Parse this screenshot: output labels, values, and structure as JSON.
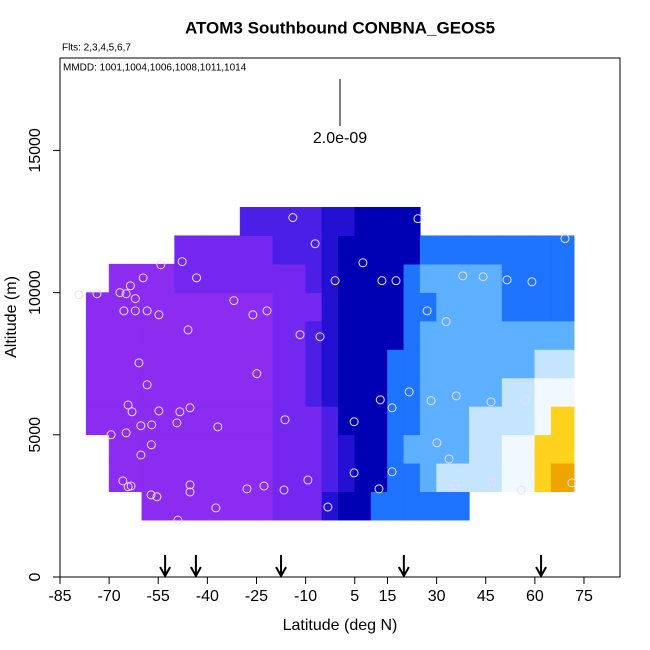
{
  "chart_data": {
    "type": "heatmap",
    "title": "ATOM3 Southbound CONBNA_GEOS5",
    "subtitle": "Flts: 2,3,4,5,6,7",
    "annotation": "MMDD: 1001,1004,1006,1008,1011,1014",
    "scale_label": "2.0e-09",
    "xlabel": "Latitude (deg N)",
    "ylabel": "Altitude (m)",
    "xlim": [
      -85,
      86
    ],
    "ylim": [
      0,
      18250
    ],
    "xticks": [
      -85,
      -70,
      -55,
      -40,
      -25,
      -10,
      5,
      15,
      30,
      45,
      60,
      75
    ],
    "yticks": [
      0,
      5000,
      10000,
      15000
    ],
    "heatmap": {
      "x_edges": [
        -77,
        -70,
        -60,
        -50,
        -40,
        -30,
        -20,
        -10,
        -5,
        0,
        5,
        10,
        15,
        20,
        25,
        30,
        40,
        50,
        60,
        65,
        72
      ],
      "y_edges": [
        2000,
        3000,
        4000,
        5000,
        6000,
        7000,
        8000,
        9000,
        10000,
        11000,
        12000,
        13000
      ],
      "colorscale": [
        "#8b2cf0",
        "#7428ef",
        "#4c1fe6",
        "#2410d2",
        "#0000b4",
        "#1e73ff",
        "#5cb0ff",
        "#c4e4ff",
        "#f2f8ff",
        "#ffd21e",
        "#f0a400"
      ],
      "values": [
        [
          null,
          null,
          0,
          0,
          0,
          0,
          1,
          1,
          3,
          4,
          4,
          5,
          5,
          5,
          5,
          5,
          null,
          null,
          null,
          null
        ],
        [
          null,
          0,
          0,
          0,
          0,
          0,
          1,
          1,
          2,
          3,
          4,
          4,
          5,
          5,
          6,
          7,
          7,
          8,
          9,
          10
        ],
        [
          null,
          0,
          0,
          0,
          0,
          0,
          1,
          1,
          2,
          3,
          4,
          4,
          5,
          6,
          6,
          6,
          7,
          8,
          9,
          9
        ],
        [
          0,
          0,
          0,
          0,
          0,
          0,
          1,
          1,
          2,
          4,
          4,
          4,
          5,
          5,
          6,
          6,
          7,
          7,
          8,
          9
        ],
        [
          0,
          0,
          0,
          0,
          0,
          0,
          1,
          2,
          3,
          4,
          4,
          4,
          5,
          5,
          6,
          6,
          6,
          7,
          8,
          8
        ],
        [
          0,
          0,
          0,
          0,
          0,
          0,
          1,
          2,
          3,
          4,
          4,
          4,
          5,
          5,
          6,
          6,
          6,
          6,
          7,
          7
        ],
        [
          0,
          0,
          0,
          0,
          0,
          0,
          1,
          2,
          3,
          4,
          4,
          4,
          4,
          5,
          6,
          6,
          6,
          6,
          6,
          6
        ],
        [
          0,
          0,
          0,
          0,
          0,
          0,
          1,
          1,
          3,
          4,
          4,
          4,
          4,
          5,
          5,
          6,
          6,
          5,
          5,
          5
        ],
        [
          null,
          0,
          0,
          1,
          1,
          1,
          1,
          2,
          3,
          4,
          4,
          4,
          4,
          5,
          6,
          6,
          6,
          5,
          5,
          5
        ],
        [
          null,
          null,
          null,
          1,
          1,
          1,
          2,
          2,
          3,
          4,
          4,
          4,
          4,
          4,
          5,
          5,
          5,
          5,
          5,
          5
        ],
        [
          null,
          null,
          null,
          null,
          null,
          2,
          2,
          2,
          3,
          3,
          4,
          4,
          4,
          4,
          null,
          null,
          null,
          null,
          null,
          null
        ]
      ]
    },
    "points": {
      "color": "#e6ddff",
      "x": [
        -79.2,
        -73.7,
        -66.7,
        -64.8,
        -63.5,
        -62,
        -65.5,
        -62,
        -58.4,
        -54.8,
        -59.6,
        -54.2,
        -47.7,
        -43.3,
        -45.9,
        -31.9,
        -26.1,
        -21.8,
        -11.7,
        -5.6,
        -7.1,
        -13.9,
        -1.0,
        7.5,
        13.3,
        17.6,
        24.3,
        27.1,
        32.9,
        38.0,
        44.2,
        51.5,
        59.1,
        69.2,
        -60.9,
        -58.4,
        -64.2,
        -63.0,
        -54.8,
        -48.4,
        -45.3,
        -49.3,
        -57.0,
        -60.3,
        -64.8,
        -69.4,
        -57.1,
        -60.3,
        -36.8,
        -24.9,
        -16.3,
        4.8,
        12.8,
        16.4,
        21.6,
        28.3,
        36.0,
        46.6,
        57.0,
        30.1,
        33.8,
        -65.8,
        -64.2,
        -63.3,
        -45.3,
        -45.3,
        -57.2,
        -55.4,
        -37.4,
        -27.9,
        -22.7,
        -16.6,
        -9.3,
        -3.2,
        4.8,
        16.4,
        12.4,
        35.6,
        46.9,
        55.8,
        71.3,
        -49.0
      ],
      "y": [
        9930,
        9960,
        10000,
        9960,
        10240,
        9790,
        9360,
        9360,
        9360,
        9220,
        10520,
        10980,
        11090,
        10520,
        8690,
        9720,
        9220,
        9360,
        8520,
        8450,
        11720,
        12640,
        10420,
        11050,
        10420,
        10420,
        12600,
        9360,
        8980,
        10590,
        10560,
        10450,
        10380,
        11900,
        7530,
        6760,
        6050,
        5810,
        5840,
        5810,
        5950,
        5420,
        5350,
        5320,
        5070,
        5000,
        4650,
        4290,
        5280,
        7150,
        5530,
        5460,
        6230,
        5950,
        6510,
        6200,
        6370,
        6160,
        6230,
        4720,
        4150,
        3380,
        3170,
        3200,
        3240,
        2990,
        2890,
        2820,
        2430,
        3100,
        3200,
        3060,
        3410,
        2460,
        3660,
        3700,
        3100,
        3240,
        3340,
        3060,
        3310,
        2000
      ]
    },
    "arrows": {
      "x": [
        -52.9,
        -43.5,
        -17.5,
        20.0,
        61.9
      ]
    }
  }
}
